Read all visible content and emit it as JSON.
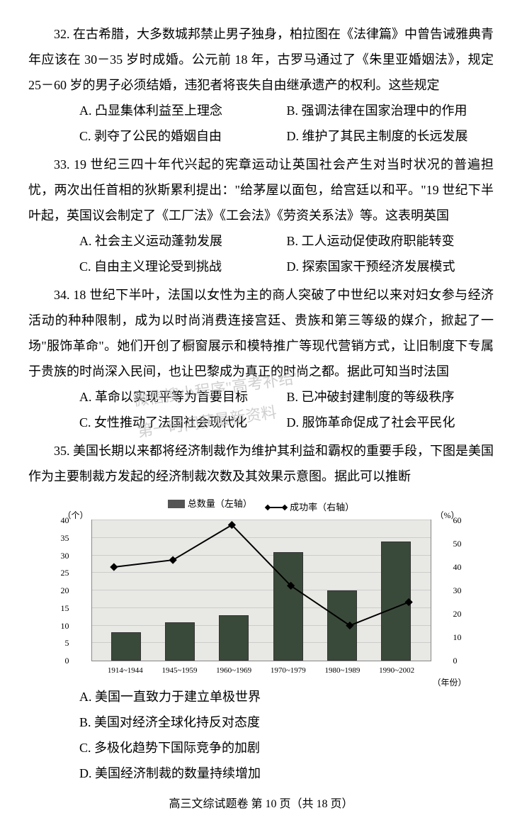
{
  "questions": {
    "q32": {
      "text": "32. 在古希腊，大多数城邦禁止男子独身，柏拉图在《法律篇》中曾告诫雅典青年应该在 30－35 岁时成婚。公元前 18 年，古罗马通过了《朱里亚婚姻法》，规定 25－60 岁的男子必须结婚，违犯者将丧失自由继承遗产的权利。这些规定",
      "optA": "A. 凸显集体利益至上理念",
      "optB": "B. 强调法律在国家治理中的作用",
      "optC": "C. 剥夺了公民的婚姻自由",
      "optD": "D. 维护了其民主制度的长远发展"
    },
    "q33": {
      "text": "33. 19 世纪三四十年代兴起的宪章运动让英国社会产生对当时状况的普遍担忧，两次出任首相的狄斯累利提出：\"给茅屋以面包，给宫廷以和平。\"19 世纪下半叶起，英国议会制定了《工厂法》《工会法》《劳资关系法》等。这表明英国",
      "optA": "A. 社会主义运动蓬勃发展",
      "optB": "B. 工人运动促使政府职能转变",
      "optC": "C. 自由主义理论受到挑战",
      "optD": "D. 探索国家干预经济发展模式"
    },
    "q34": {
      "text": "34. 18 世纪下半叶，法国以女性为主的商人突破了中世纪以来对妇女参与经济活动的种种限制，成为以时尚消费连接宫廷、贵族和第三等级的媒介，掀起了一场\"服饰革命\"。她们开创了橱窗展示和模特推广等现代营销方式，让旧制度下专属于贵族的时尚深入民间，也让巴黎成为真正的时尚之都。据此可知当时法国",
      "optA": "A. 革命以实现平等为首要目标",
      "optB": "B. 已冲破封建制度的等级秩序",
      "optC": "C. 女性推动了法国社会现代化",
      "optD": "D. 服饰革命促成了社会平民化"
    },
    "q35": {
      "text": "35. 美国长期以来都将经济制裁作为维护其利益和霸权的重要手段，下图是美国作为主要制裁方发起的经济制裁次数及其效果示意图。据此可以推断",
      "optA": "A. 美国一直致力于建立单极世界",
      "optB": "B. 美国对经济全球化持反对态度",
      "optC": "C. 多极化趋势下国际竞争的加剧",
      "optD": "D. 美国经济制裁的数量持续增加"
    }
  },
  "watermark": {
    "line1": "微信搜小程序\"高考补给\"",
    "line2": "第一时间获最新资料"
  },
  "chart": {
    "legend_bar": "总数量（左轴）",
    "legend_line": "成功率（右轴）",
    "y_left_label": "（个）",
    "y_right_label": "（%）",
    "x_axis_label": "（年份）",
    "y_left_max": 40,
    "y_left_step": 5,
    "y_right_max": 60,
    "y_right_step": 10,
    "categories": [
      "1914~1944",
      "1945~1959",
      "1960~1969",
      "1970~1979",
      "1980~1989",
      "1990~2002"
    ],
    "bar_values": [
      8,
      11,
      13,
      31,
      20,
      34
    ],
    "line_values": [
      40,
      43,
      58,
      32,
      15,
      25
    ],
    "bar_color": "#3a4a3a",
    "background_color": "#e8e8e4"
  },
  "footer": "高三文综试题卷 第 10 页（共 18 页）"
}
